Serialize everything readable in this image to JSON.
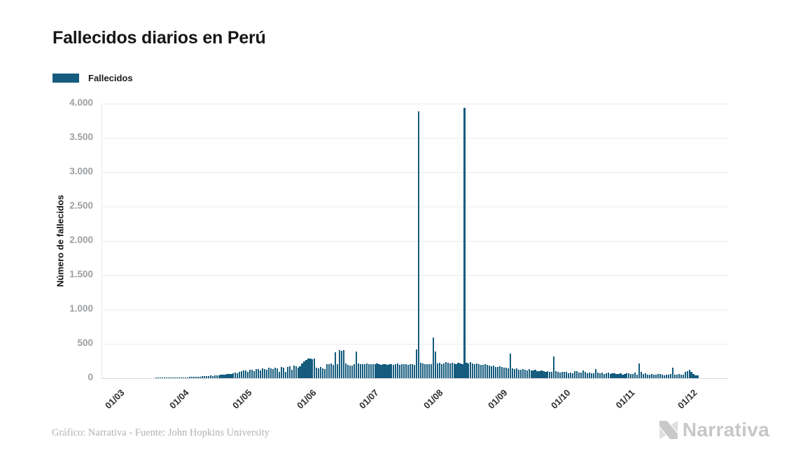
{
  "header": {
    "title": "Fallecidos diarios en Perú"
  },
  "legend": {
    "label": "Fallecidos"
  },
  "footer": {
    "credit": "Gráfico: Narrativa - Fuente: John Hopkins University",
    "brand": "Narrativa"
  },
  "colors": {
    "bar": "#155C7E",
    "grid": "#ececec",
    "grid_zero": "#d9d9d9",
    "axis_line": "#e7e7e7",
    "y_tick_text": "#9da0a3",
    "x_tick_text": "#2e2e2e",
    "footer_text": "#b3b3b3",
    "brand_gray": "#c7c7c7"
  },
  "chart_data": {
    "type": "bar",
    "title": "Fallecidos diarios en Perú",
    "series_name": "Fallecidos",
    "xlabel": "",
    "ylabel": "Número de fallecidos",
    "ylim": [
      0,
      4000
    ],
    "grid": true,
    "legend_position": "top-left",
    "x_tick_rotation": -45,
    "start_date": "01/03/2020",
    "notes": "Daily deaths; two data-revision spikes: ~3.890 on 23/07 and ~3.940 on 14/08",
    "y_ticks": [
      {
        "label": "0",
        "value": 0
      },
      {
        "label": "500",
        "value": 500
      },
      {
        "label": "1.000",
        "value": 1000
      },
      {
        "label": "1.500",
        "value": 1500
      },
      {
        "label": "2.000",
        "value": 2000
      },
      {
        "label": "2.500",
        "value": 2500
      },
      {
        "label": "3.000",
        "value": 3000
      },
      {
        "label": "3.500",
        "value": 3500
      },
      {
        "label": "4.000",
        "value": 4000
      }
    ],
    "x_ticks": [
      {
        "label": "01/03",
        "day": 0
      },
      {
        "label": "01/04",
        "day": 31
      },
      {
        "label": "01/05",
        "day": 61
      },
      {
        "label": "01/06",
        "day": 92
      },
      {
        "label": "01/07",
        "day": 122
      },
      {
        "label": "01/08",
        "day": 153
      },
      {
        "label": "01/09",
        "day": 184
      },
      {
        "label": "01/10",
        "day": 214
      },
      {
        "label": "01/11",
        "day": 245
      },
      {
        "label": "01/12",
        "day": 275
      }
    ],
    "offset_slots": 8,
    "total_slots": 301,
    "values": [
      0,
      0,
      0,
      0,
      0,
      0,
      0,
      0,
      0,
      0,
      0,
      0,
      0,
      0,
      0,
      0,
      0,
      0,
      1,
      1,
      2,
      1,
      3,
      2,
      4,
      3,
      5,
      6,
      8,
      9,
      11,
      12,
      14,
      13,
      16,
      18,
      17,
      21,
      24,
      22,
      27,
      30,
      28,
      33,
      37,
      35,
      41,
      45,
      43,
      50,
      55,
      52,
      60,
      66,
      63,
      72,
      80,
      76,
      95,
      105,
      112,
      108,
      96,
      121,
      126,
      104,
      133,
      128,
      117,
      141,
      135,
      122,
      148,
      140,
      129,
      153,
      146,
      96,
      159,
      151,
      88,
      166,
      173,
      120,
      181,
      169,
      148,
      176,
      210,
      241,
      264,
      285,
      282,
      278,
      286,
      150,
      139,
      163,
      146,
      131,
      206,
      199,
      211,
      196,
      378,
      206,
      413,
      396,
      408,
      211,
      196,
      186,
      179,
      206,
      390,
      216,
      208,
      199,
      206,
      211,
      203,
      208,
      206,
      199,
      211,
      203,
      196,
      208,
      201,
      193,
      206,
      199,
      189,
      203,
      211,
      196,
      201,
      206,
      199,
      193,
      206,
      201,
      189,
      415,
      3890,
      226,
      211,
      206,
      199,
      206,
      203,
      590,
      388,
      216,
      226,
      209,
      219,
      231,
      223,
      211,
      229,
      216,
      206,
      221,
      213,
      209,
      3940,
      226,
      219,
      231,
      211,
      206,
      216,
      209,
      196,
      189,
      206,
      193,
      181,
      173,
      186,
      166,
      159,
      171,
      163,
      149,
      156,
      141,
      355,
      146,
      133,
      139,
      126,
      119,
      131,
      123,
      116,
      129,
      109,
      113,
      121,
      106,
      99,
      111,
      103,
      96,
      106,
      93,
      89,
      318,
      97,
      91,
      86,
      96,
      89,
      93,
      76,
      83,
      71,
      99,
      106,
      79,
      86,
      113,
      96,
      73,
      81,
      69,
      76,
      131,
      86,
      71,
      79,
      66,
      73,
      81,
      63,
      69,
      76,
      59,
      65,
      71,
      56,
      63,
      69,
      73,
      59,
      66,
      81,
      53,
      215,
      89,
      63,
      71,
      56,
      49,
      61,
      53,
      46,
      59,
      66,
      51,
      43,
      56,
      49,
      61,
      150,
      46,
      51,
      63,
      48,
      56,
      90,
      105,
      118,
      96,
      61,
      44,
      38
    ]
  }
}
